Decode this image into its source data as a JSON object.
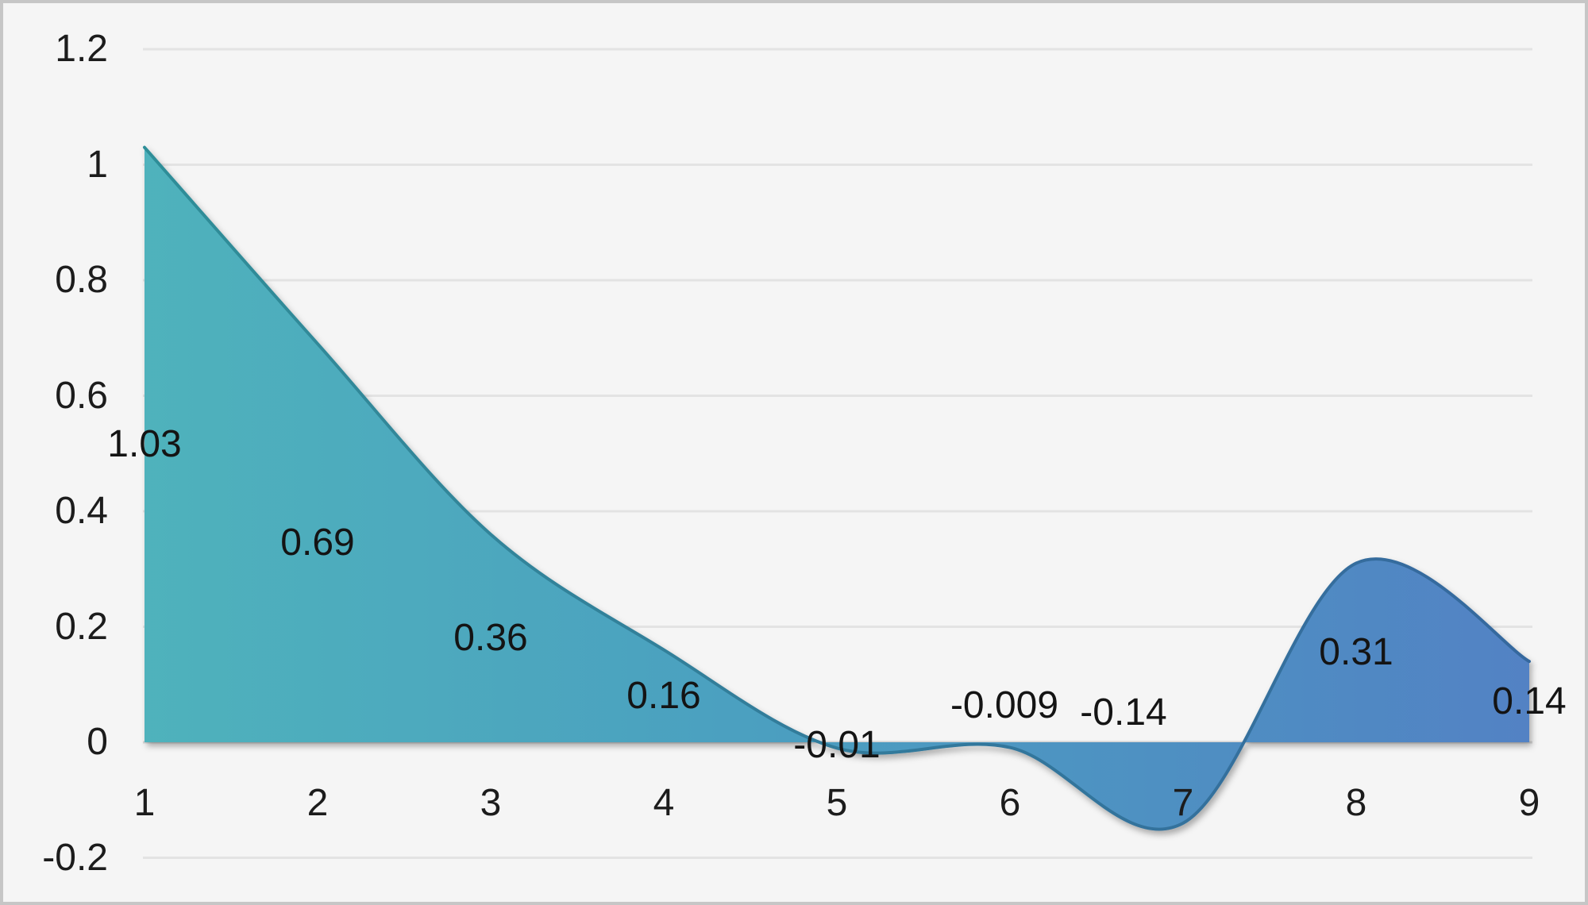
{
  "chart_data": {
    "type": "area",
    "smoothed": true,
    "title": "",
    "xlabel": "",
    "ylabel": "",
    "categories": [
      "1",
      "2",
      "3",
      "4",
      "5",
      "6",
      "7",
      "8",
      "9"
    ],
    "values": [
      1.03,
      0.69,
      0.36,
      0.16,
      -0.01,
      -0.009,
      -0.14,
      0.31,
      0.14
    ],
    "data_labels": [
      "1.03",
      "0.69",
      "0.36",
      "0.16",
      "-0.01",
      "-0.009",
      "-0.14",
      "0.31",
      "0.14"
    ],
    "y_ticks": [
      {
        "label": "1.2",
        "value": 1.2
      },
      {
        "label": "1",
        "value": 1.0
      },
      {
        "label": "0.8",
        "value": 0.8
      },
      {
        "label": "0.6",
        "value": 0.6
      },
      {
        "label": "0.4",
        "value": 0.4
      },
      {
        "label": "0.2",
        "value": 0.2
      },
      {
        "label": "0",
        "value": 0.0
      },
      {
        "label": "-0.2",
        "value": -0.2
      }
    ],
    "ylim": [
      -0.2,
      1.2
    ],
    "grid": true,
    "legend": "none",
    "label_placement": "center-of-area",
    "label_overrides": {
      "5": {
        "x": 1265,
        "y": 889
      },
      "6": {
        "x": 1415,
        "y": 898
      }
    },
    "colors": {
      "fill_gradient_left": "#4FB2BC",
      "fill_gradient_mid": "#4B9FC0",
      "fill_gradient_right": "#5282C4",
      "line_gradient_left": "#2F8E98",
      "line_gradient_right": "#35689E",
      "background": "#F5F5F5",
      "frame_border": "#C6C6C6",
      "gridline": "#E3E3E3",
      "zero_axis_line": "#D6D6D6",
      "text": "#1C1C1C"
    }
  }
}
